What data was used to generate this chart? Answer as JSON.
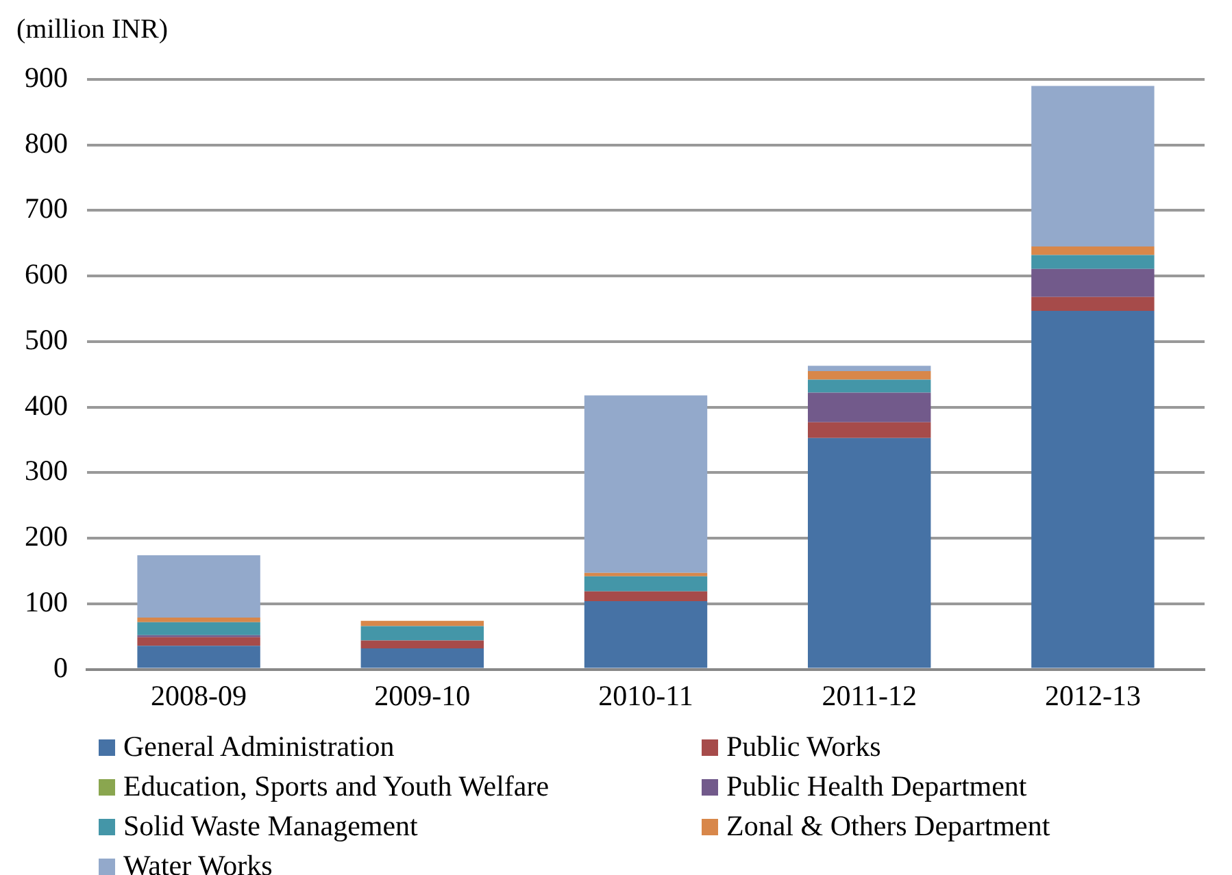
{
  "chart_data": {
    "type": "bar",
    "stacked": true,
    "ylabel": "(million INR)",
    "categories": [
      "2008-09",
      "2009-10",
      "2010-11",
      "2011-12",
      "2012-13"
    ],
    "series": [
      {
        "name": "General Administration",
        "color": "#4672a5",
        "values": [
          36,
          32,
          104,
          353,
          547
        ]
      },
      {
        "name": "Public Works",
        "color": "#a64b4a",
        "values": [
          13,
          12,
          15,
          24,
          21
        ]
      },
      {
        "name": "Education, Sports and Youth Welfare",
        "color": "#8aa64f",
        "values": [
          0,
          0,
          0,
          0,
          0
        ]
      },
      {
        "name": "Public Health Department",
        "color": "#725a8b",
        "values": [
          3,
          0,
          0,
          45,
          43
        ]
      },
      {
        "name": "Solid Waste Management",
        "color": "#4496a8",
        "values": [
          20,
          22,
          23,
          20,
          21
        ]
      },
      {
        "name": "Zonal & Others Department",
        "color": "#d8874a",
        "values": [
          7,
          8,
          5,
          13,
          13
        ]
      },
      {
        "name": "Water Works",
        "color": "#93a9cb",
        "values": [
          95,
          0,
          271,
          8,
          245
        ]
      }
    ],
    "ylim": [
      0,
      900
    ],
    "yticks": [
      0,
      100,
      200,
      300,
      400,
      500,
      600,
      700,
      800,
      900
    ],
    "grid": "y",
    "legend": "bottom"
  }
}
